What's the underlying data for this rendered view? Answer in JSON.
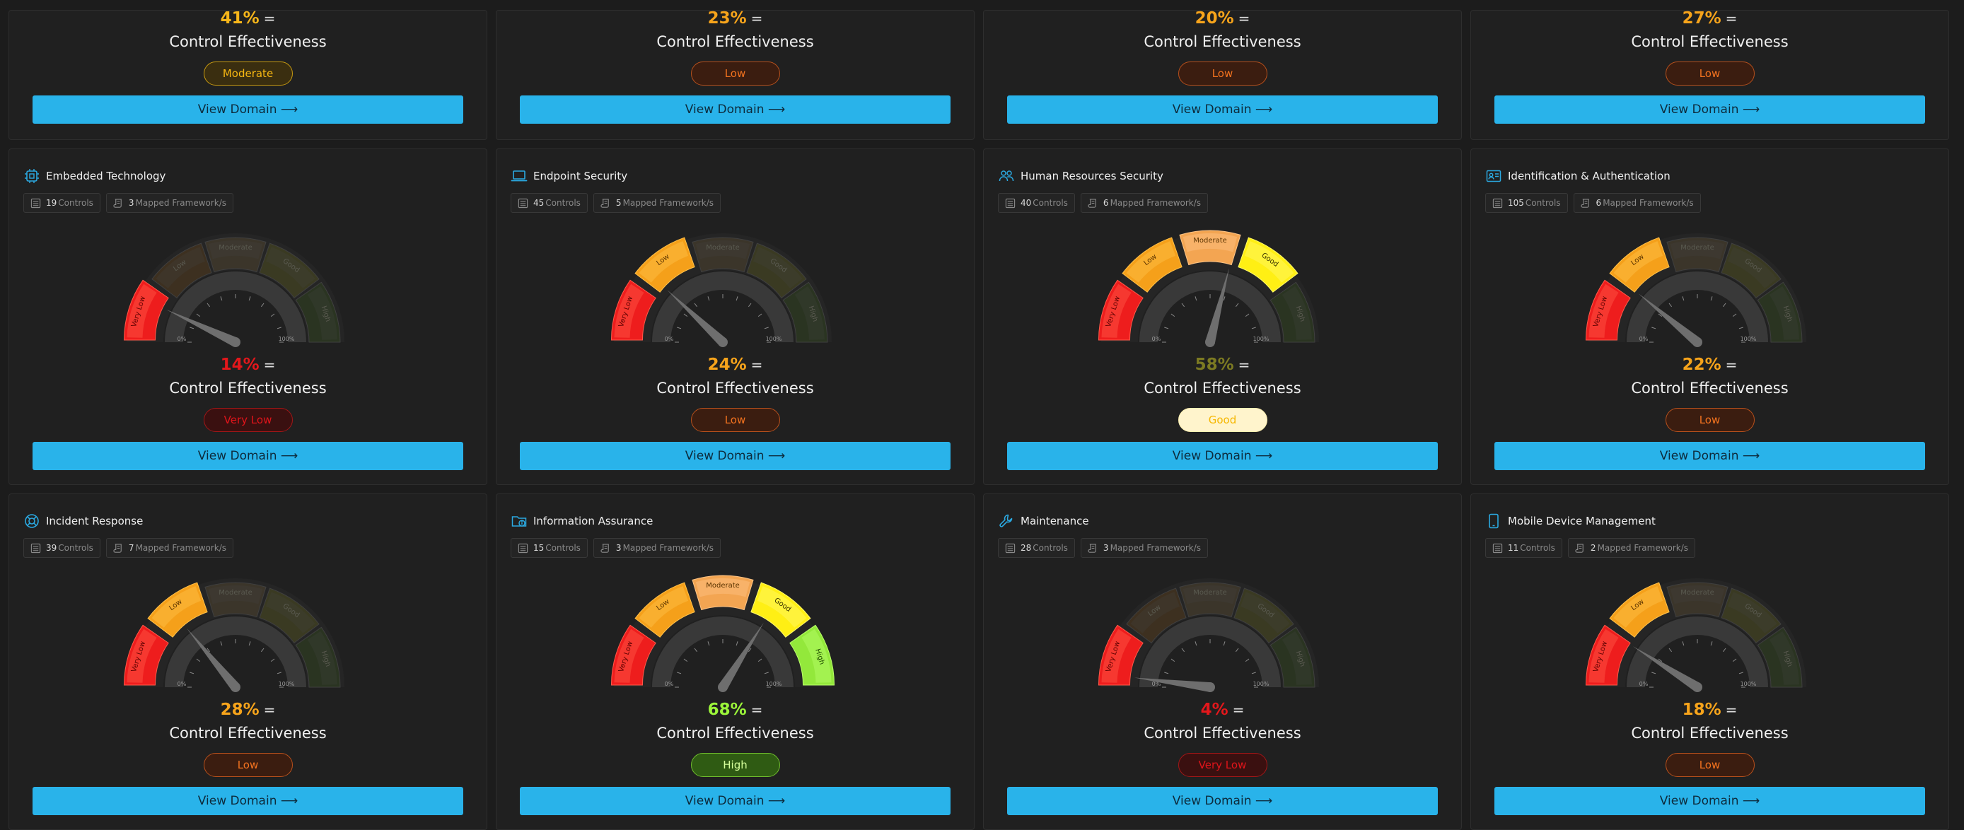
{
  "common": {
    "effectiveness_label": "Control Effectiveness",
    "equals": "=",
    "button_label": "View Domain ⟶",
    "controls_suffix": "Controls",
    "frameworks_suffix": "Mapped Framework/s",
    "gauge_segments": [
      "Very Low",
      "Low",
      "Moderate",
      "Good",
      "High"
    ],
    "tick_min": "0%",
    "tick_max": "100%"
  },
  "level_styles": {
    "Very Low": {
      "text": "#e0141a",
      "bg": "#3a1010",
      "border": "#a11617"
    },
    "Low": {
      "text": "#f2721f",
      "bg": "#3b1d10",
      "border": "#b7501c"
    },
    "Moderate": {
      "text": "#f6b712",
      "bg": "#3a2e10",
      "border": "#c79a10"
    },
    "Good": {
      "text": "#f6b700",
      "bg": "#fff4cc",
      "border": "#fff0b0"
    },
    "High": {
      "text": "#d6ff9c",
      "bg": "#2f5b13",
      "border": "#6fbd2d"
    }
  },
  "pct_colors": {
    "Very Low": "#e3171b",
    "Low": "#f7a41b",
    "Moderate": "#f7b61a",
    "Good": "#7c7a22",
    "High": "#9cf63a"
  },
  "cards": [
    {
      "title": "",
      "icon": "",
      "controls": "",
      "frameworks": "",
      "percent": 41,
      "percent_label": "41%",
      "level": "Moderate"
    },
    {
      "title": "",
      "icon": "",
      "controls": "",
      "frameworks": "",
      "percent": 23,
      "percent_label": "23%",
      "level": "Low"
    },
    {
      "title": "",
      "icon": "",
      "controls": "",
      "frameworks": "",
      "percent": 20,
      "percent_label": "20%",
      "level": "Low"
    },
    {
      "title": "",
      "icon": "",
      "controls": "",
      "frameworks": "",
      "percent": 27,
      "percent_label": "27%",
      "level": "Low"
    },
    {
      "title": "Embedded Technology",
      "icon": "chip-icon",
      "controls": "19",
      "frameworks": "3",
      "percent": 14,
      "percent_label": "14%",
      "level": "Very Low"
    },
    {
      "title": "Endpoint Security",
      "icon": "laptop-icon",
      "controls": "45",
      "frameworks": "5",
      "percent": 24,
      "percent_label": "24%",
      "level": "Low"
    },
    {
      "title": "Human Resources Security",
      "icon": "people-icon",
      "controls": "40",
      "frameworks": "6",
      "percent": 58,
      "percent_label": "58%",
      "level": "Good"
    },
    {
      "title": "Identification & Authentication",
      "icon": "id-card-icon",
      "controls": "105",
      "frameworks": "6",
      "percent": 22,
      "percent_label": "22%",
      "level": "Low"
    },
    {
      "title": "Incident Response",
      "icon": "lifebuoy-icon",
      "controls": "39",
      "frameworks": "7",
      "percent": 28,
      "percent_label": "28%",
      "level": "Low"
    },
    {
      "title": "Information Assurance",
      "icon": "folder-info-icon",
      "controls": "15",
      "frameworks": "3",
      "percent": 68,
      "percent_label": "68%",
      "level": "High"
    },
    {
      "title": "Maintenance",
      "icon": "wrench-icon",
      "controls": "28",
      "frameworks": "3",
      "percent": 4,
      "percent_label": "4%",
      "level": "Very Low"
    },
    {
      "title": "Mobile Device Management",
      "icon": "phone-icon",
      "controls": "11",
      "frameworks": "2",
      "percent": 18,
      "percent_label": "18%",
      "level": "Low"
    }
  ]
}
